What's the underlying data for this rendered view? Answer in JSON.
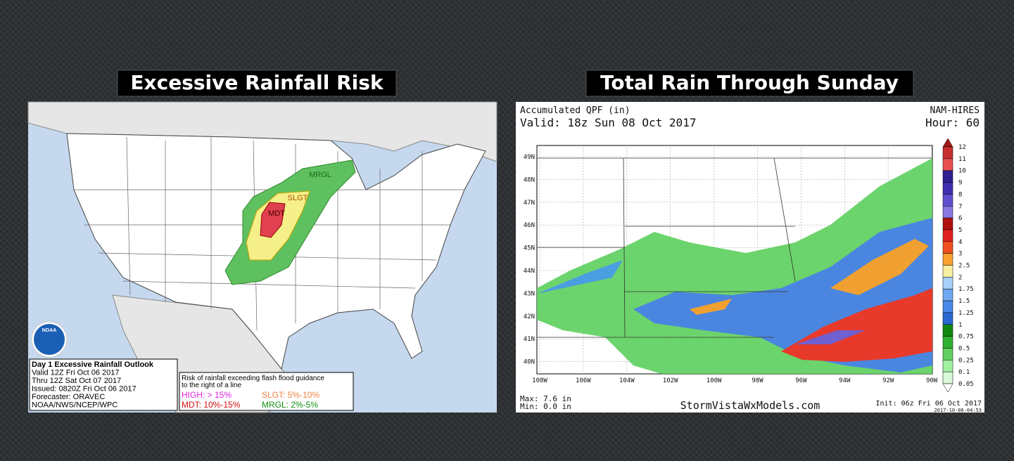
{
  "left_panel": {
    "title": "Excessive Rainfall Risk",
    "map_labels": [
      "MRGL",
      "SLGT",
      "MDT"
    ],
    "logo": "NOAA",
    "info": [
      "Day 1 Excessive Rainfall Outlook",
      "Valid 12Z Fri Oct 06 2017",
      "Thru 12Z Sat Oct 07 2017",
      "Issued: 0820Z Fri Oct 06 2017",
      "Forecaster: ORAVEC",
      "NOAA/NWS/NCEP/WPC"
    ],
    "legend": {
      "heading": "Risk of rainfall exceeding flash flood guidance",
      "subheading": "to the right of a line",
      "items": [
        "HIGH: > 15%",
        "SLGT: 5%-10%",
        "MDT: 10%-15%",
        "MRGL: 2%-5%"
      ]
    }
  },
  "right_panel": {
    "title": "Total Rain Through Sunday",
    "product": "Accumulated QPF (in)",
    "valid": "Valid: 18z Sun 08 Oct 2017",
    "model": "NAM-HIRES",
    "hour": "Hour: 60",
    "lat_labels": [
      "49N",
      "48N",
      "47N",
      "46N",
      "45N",
      "44N",
      "43N",
      "42N",
      "41N",
      "40N"
    ],
    "lon_labels": [
      "108W",
      "106W",
      "104W",
      "102W",
      "100W",
      "98W",
      "96W",
      "94W",
      "92W",
      "90W"
    ],
    "colorbar_labels": [
      "12",
      "11",
      "10",
      "9",
      "8",
      "7",
      "6",
      "5",
      "4",
      "3",
      "2.5",
      "2",
      "1.75",
      "1.5",
      "1.25",
      "1",
      "0.75",
      "0.5",
      "0.25",
      "0.1",
      "0.05"
    ],
    "max": "Max: 7.6 in",
    "min": "Min: 0.0 in",
    "source": "StormVistaWxModels.com",
    "init": "Init: 06z Fri 06 Oct 2017",
    "timestamp": "2017-10-06-04:53"
  }
}
